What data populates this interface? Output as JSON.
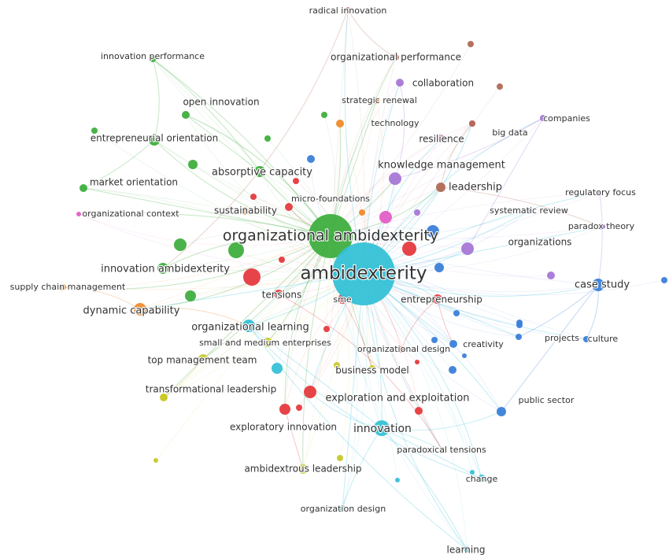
{
  "network": {
    "cluster_colors": {
      "red": "#e53a3e",
      "green": "#3fae3f",
      "blue": "#3b7fd9",
      "yellow": "#c7c928",
      "purple": "#a877d6",
      "cyan": "#35c1d6",
      "orange": "#f08a2a",
      "brown": "#b06a55",
      "pink": "#e35fc7"
    },
    "keywords": [
      {
        "id": "ambidexterity",
        "label": "ambidexterity",
        "cluster": "cyan"
      },
      {
        "id": "organizational_ambidexterity",
        "label": "organizational ambidexterity",
        "cluster": "green"
      },
      {
        "id": "radical_innovation",
        "label": "radical innovation",
        "cluster": "brown"
      },
      {
        "id": "innovation_performance",
        "label": "innovation performance",
        "cluster": "green"
      },
      {
        "id": "organizational_performance",
        "label": "organizational performance",
        "cluster": "brown"
      },
      {
        "id": "collaboration",
        "label": "collaboration",
        "cluster": "purple"
      },
      {
        "id": "open_innovation",
        "label": "open innovation",
        "cluster": "green"
      },
      {
        "id": "strategic_renewal",
        "label": "strategic renewal",
        "cluster": "orange"
      },
      {
        "id": "technology",
        "label": "technology",
        "cluster": "orange"
      },
      {
        "id": "companies",
        "label": "companies",
        "cluster": "purple"
      },
      {
        "id": "entrepreneurial_orientation",
        "label": "entrepreneurial orientation",
        "cluster": "green"
      },
      {
        "id": "resilience",
        "label": "resilience",
        "cluster": "pink"
      },
      {
        "id": "big_data",
        "label": "big data",
        "cluster": "brown"
      },
      {
        "id": "absorptive_capacity",
        "label": "absorptive capacity",
        "cluster": "green"
      },
      {
        "id": "knowledge_management",
        "label": "knowledge management",
        "cluster": "purple"
      },
      {
        "id": "market_orientation",
        "label": "market orientation",
        "cluster": "green"
      },
      {
        "id": "leadership",
        "label": "leadership",
        "cluster": "brown"
      },
      {
        "id": "regulatory_focus",
        "label": "regulatory focus",
        "cluster": "purple"
      },
      {
        "id": "micro_foundations",
        "label": "micro-foundations",
        "cluster": "red"
      },
      {
        "id": "organizational_context",
        "label": "organizational context",
        "cluster": "pink"
      },
      {
        "id": "sustainability",
        "label": "sustainability",
        "cluster": "orange"
      },
      {
        "id": "systematic_review",
        "label": "systematic review",
        "cluster": "blue"
      },
      {
        "id": "paradox_theory",
        "label": "paradox theory",
        "cluster": "purple"
      },
      {
        "id": "organizations",
        "label": "organizations",
        "cluster": "purple"
      },
      {
        "id": "innovation_ambidexterity",
        "label": "innovation ambidexterity",
        "cluster": "green"
      },
      {
        "id": "supply_chain_management",
        "label": "supply chain management",
        "cluster": "orange"
      },
      {
        "id": "tensions",
        "label": "tensions",
        "cluster": "red"
      },
      {
        "id": "sme",
        "label": "sme",
        "cluster": "red"
      },
      {
        "id": "entrepreneurship",
        "label": "entrepreneurship",
        "cluster": "red"
      },
      {
        "id": "case_study",
        "label": "case study",
        "cluster": "blue"
      },
      {
        "id": "dynamic_capability",
        "label": "dynamic capability",
        "cluster": "orange"
      },
      {
        "id": "organizational_learning",
        "label": "organizational learning",
        "cluster": "cyan"
      },
      {
        "id": "small_and_medium_enterprises",
        "label": "small and medium enterprises",
        "cluster": "yellow"
      },
      {
        "id": "organizational_design",
        "label": "organizational design",
        "cluster": "red"
      },
      {
        "id": "creativity",
        "label": "creativity",
        "cluster": "blue"
      },
      {
        "id": "projects",
        "label": "projects",
        "cluster": "blue"
      },
      {
        "id": "culture",
        "label": "culture",
        "cluster": "blue"
      },
      {
        "id": "top_management_team",
        "label": "top management team",
        "cluster": "yellow"
      },
      {
        "id": "business_model",
        "label": "business model",
        "cluster": "yellow"
      },
      {
        "id": "transformational_leadership",
        "label": "transformational leadership",
        "cluster": "yellow"
      },
      {
        "id": "exploration_and_exploitation",
        "label": "exploration and exploitation",
        "cluster": "red"
      },
      {
        "id": "public_sector",
        "label": "public sector",
        "cluster": "blue"
      },
      {
        "id": "exploratory_innovation",
        "label": "exploratory innovation",
        "cluster": "red"
      },
      {
        "id": "innovation",
        "label": "innovation",
        "cluster": "cyan"
      },
      {
        "id": "paradoxical_tensions",
        "label": "paradoxical tensions",
        "cluster": "red"
      },
      {
        "id": "ambidextrous_leadership",
        "label": "ambidextrous leadership",
        "cluster": "yellow"
      },
      {
        "id": "change",
        "label": "change",
        "cluster": "cyan"
      },
      {
        "id": "organization_design",
        "label": "organization design",
        "cluster": "cyan"
      },
      {
        "id": "learning",
        "label": "learning",
        "cluster": "cyan"
      }
    ]
  }
}
